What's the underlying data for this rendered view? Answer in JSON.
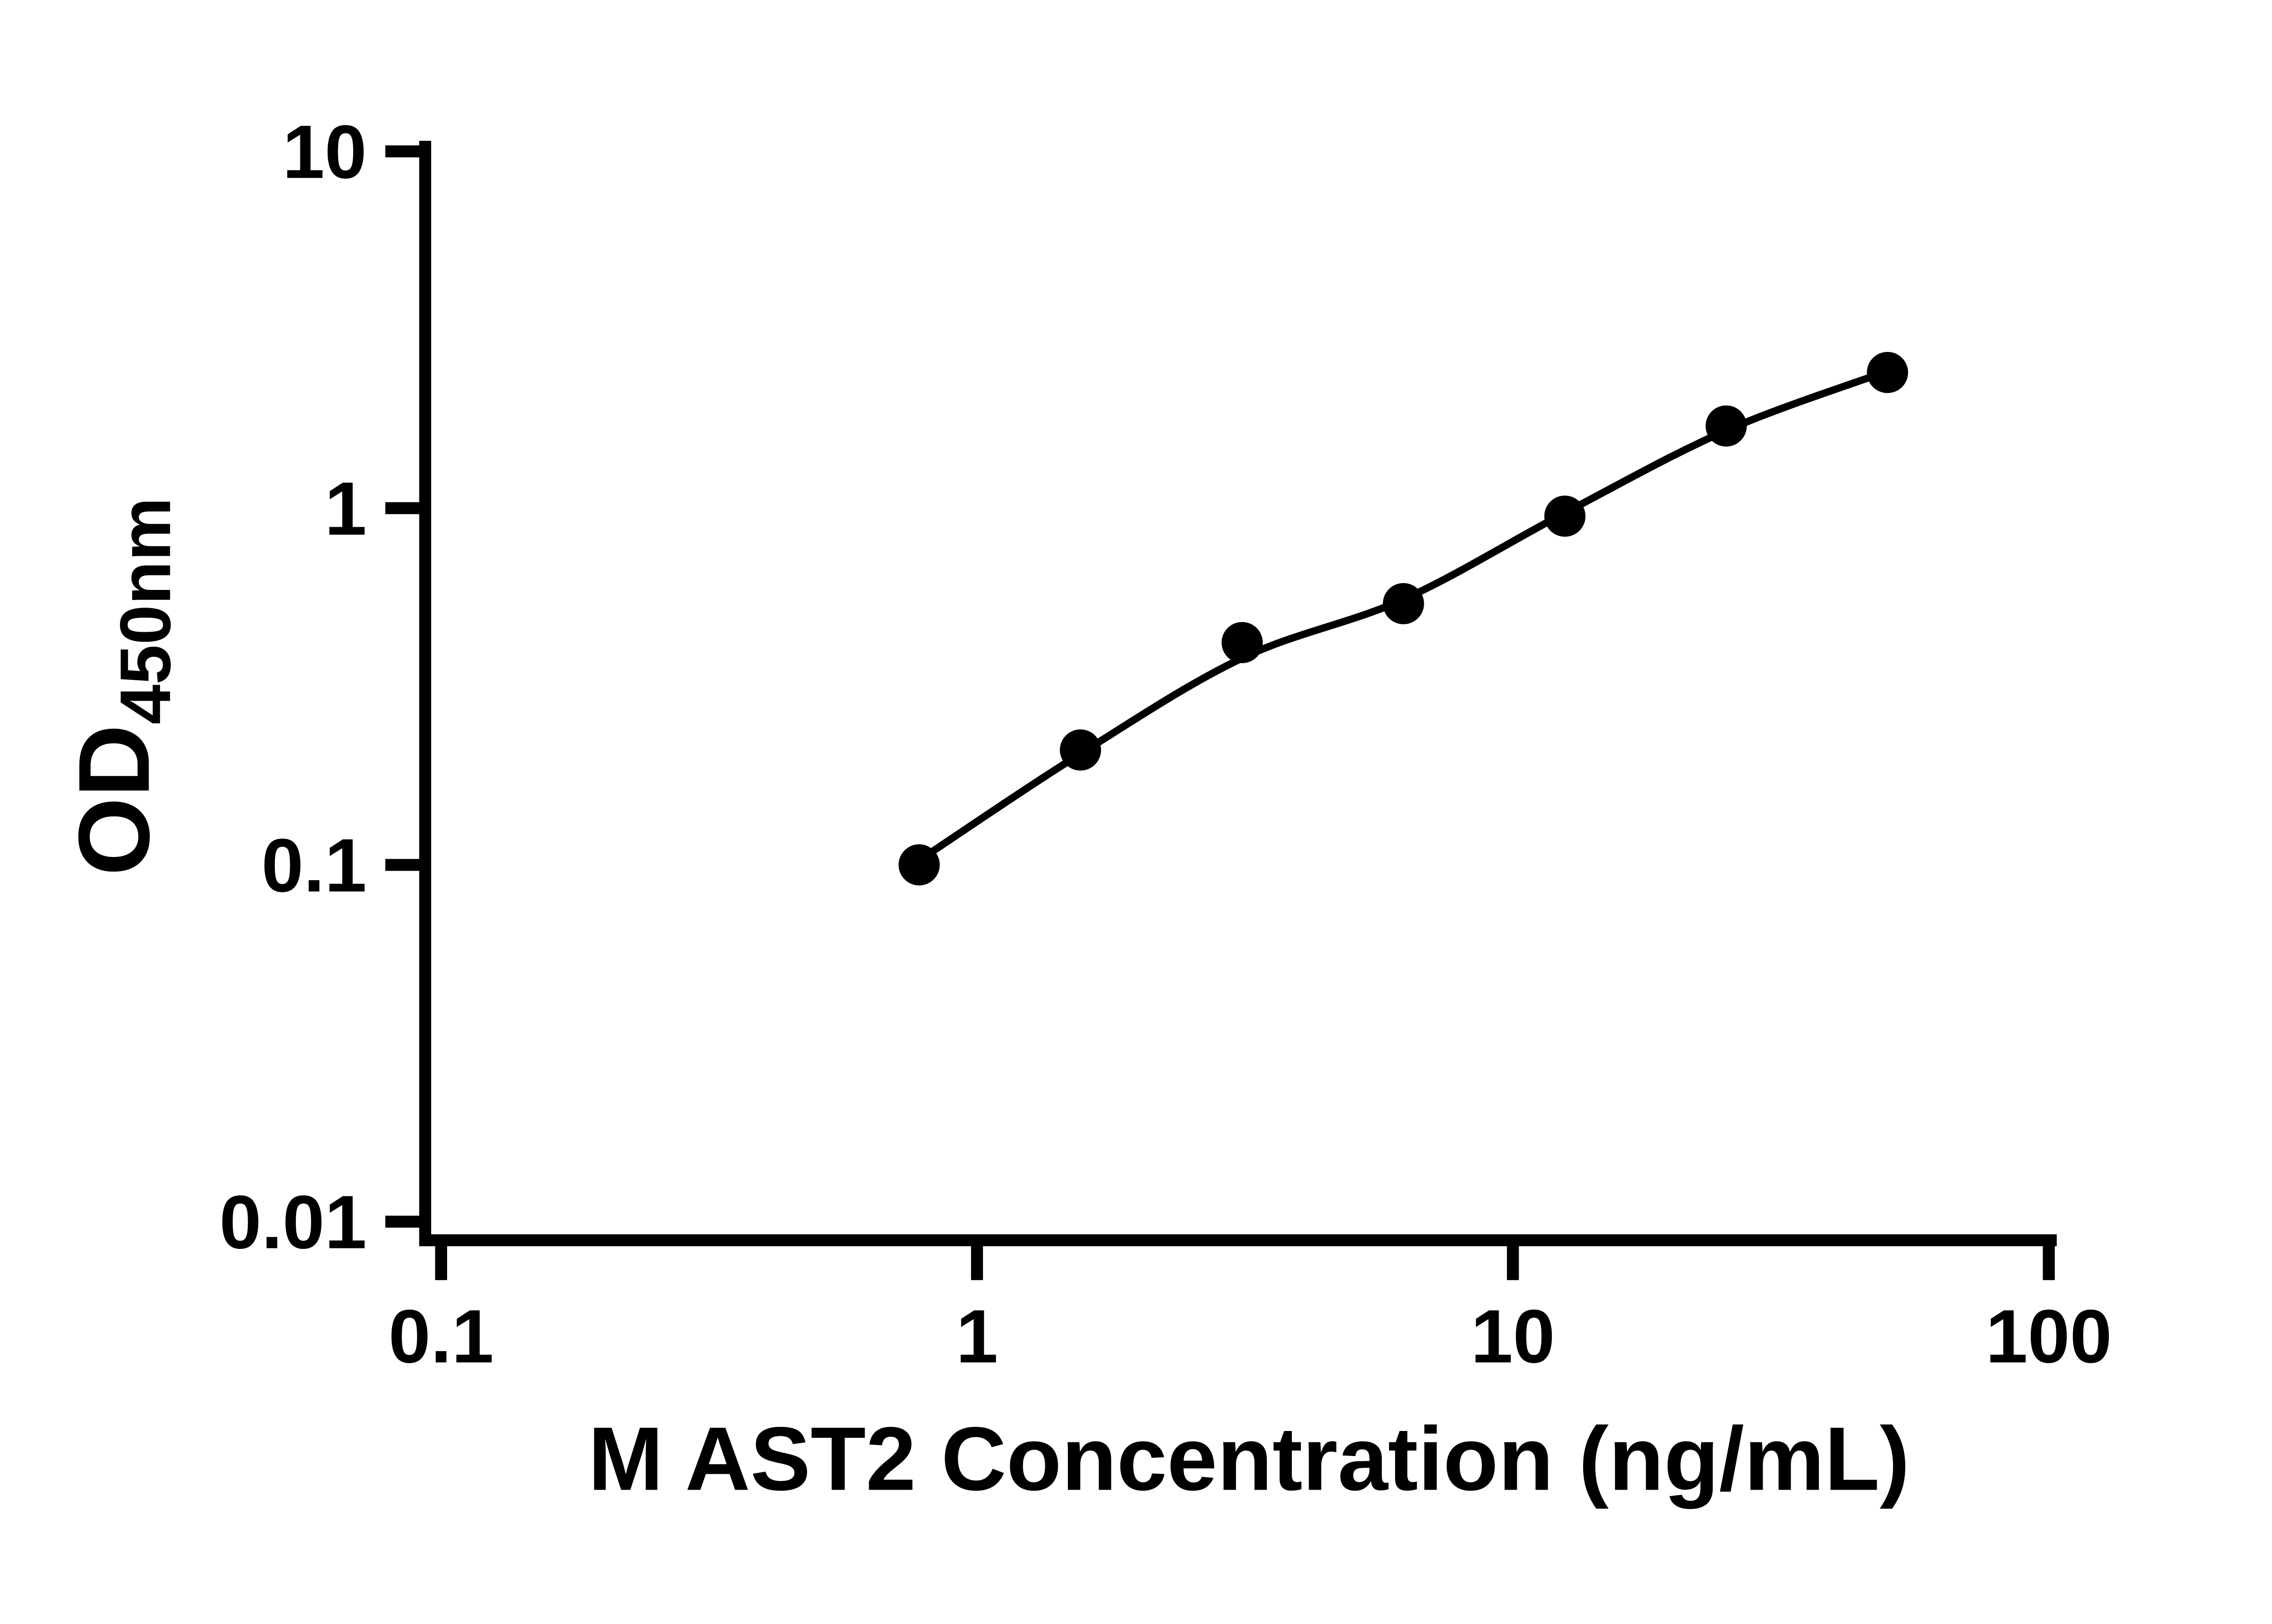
{
  "chart_data": {
    "type": "scatter",
    "xlabel": "M AST2 Concentration (ng/mL)",
    "ylabel_main": "OD",
    "ylabel_sub": "450nm",
    "x_scale": "log10",
    "y_scale": "log10",
    "xlim": [
      0.1,
      100
    ],
    "ylim": [
      0.01,
      10
    ],
    "x_tick_values": [
      0.1,
      1,
      10,
      100
    ],
    "x_tick_labels": [
      "0.1",
      "1",
      "10",
      "100"
    ],
    "y_tick_values": [
      0.01,
      0.1,
      1,
      10
    ],
    "y_tick_labels": [
      "0.01",
      "0.1",
      "1",
      "10"
    ],
    "grid": false,
    "legend": null,
    "axis_color": "#000000",
    "series": [
      {
        "marker": "circle",
        "color": "#000000",
        "points": [
          {
            "x": 0.78,
            "y": 0.1
          },
          {
            "x": 1.56,
            "y": 0.21
          },
          {
            "x": 3.125,
            "y": 0.42
          },
          {
            "x": 6.25,
            "y": 0.54
          },
          {
            "x": 12.5,
            "y": 0.95
          },
          {
            "x": 25,
            "y": 1.7
          },
          {
            "x": 50,
            "y": 2.4
          }
        ]
      }
    ],
    "fit_curve": {
      "color": "#000000",
      "points": [
        {
          "x": 0.78,
          "y": 0.103
        },
        {
          "x": 1.56,
          "y": 0.205
        },
        {
          "x": 3.125,
          "y": 0.38
        },
        {
          "x": 6.25,
          "y": 0.555
        },
        {
          "x": 12.5,
          "y": 0.97
        },
        {
          "x": 25,
          "y": 1.65
        },
        {
          "x": 50,
          "y": 2.42
        }
      ]
    }
  }
}
